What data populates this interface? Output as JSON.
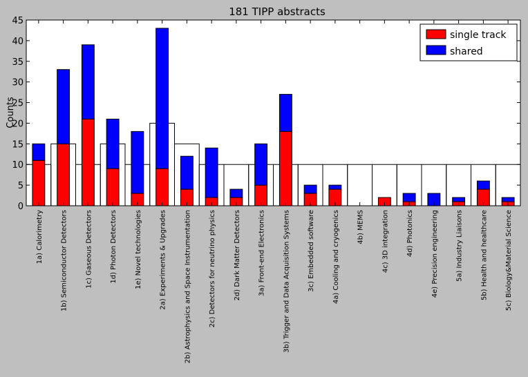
{
  "chart_data": {
    "type": "bar",
    "title": "181 TIPP abstracts",
    "xlabel": "",
    "ylabel": "Counts",
    "ylim": [
      0,
      45
    ],
    "yticks": [
      0,
      5,
      10,
      15,
      20,
      25,
      30,
      35,
      40,
      45
    ],
    "grid": false,
    "legend_position": "top-right",
    "categories": [
      "1a) Calorimetry",
      "1b) Semiconductor Detectors",
      "1c) Gaseous Detectors",
      "1d) Photon Detectors",
      "1e) Novel technologies",
      "2a) Experiments & Upgrades",
      "2b) Astrophysics and Space Instrumentation",
      "2c) Detectors for neutrino physics",
      "2d) Dark Matter Detectors",
      "3a) Front-end Electronics",
      "3b) Trigger and Data Acquisition Systems",
      "3c) Embedded software",
      "4a) Cooling and cryogenics",
      "4b) MEMS",
      "4c) 3D integration",
      "4d) Photonics",
      "4e) Precision engineering",
      "5a) Industry Liaisons",
      "5b) Health and healthcare",
      "5c) Biology&Material Science"
    ],
    "series": [
      {
        "name": "single track",
        "color": "#ff0000",
        "values": [
          11,
          15,
          21,
          9,
          3,
          9,
          4,
          2,
          2,
          5,
          18,
          3,
          4,
          0,
          2,
          1,
          0,
          1,
          4,
          1
        ]
      },
      {
        "name": "shared",
        "color": "#0000ff",
        "values": [
          4,
          18,
          18,
          12,
          15,
          34,
          8,
          12,
          2,
          10,
          9,
          2,
          1,
          0,
          0,
          2,
          3,
          1,
          2,
          1
        ]
      }
    ],
    "outline_values": [
      10,
      15,
      10,
      15,
      10,
      20,
      15,
      10,
      10,
      10,
      10,
      10,
      10,
      10,
      10,
      10,
      10,
      10,
      10,
      10
    ]
  }
}
